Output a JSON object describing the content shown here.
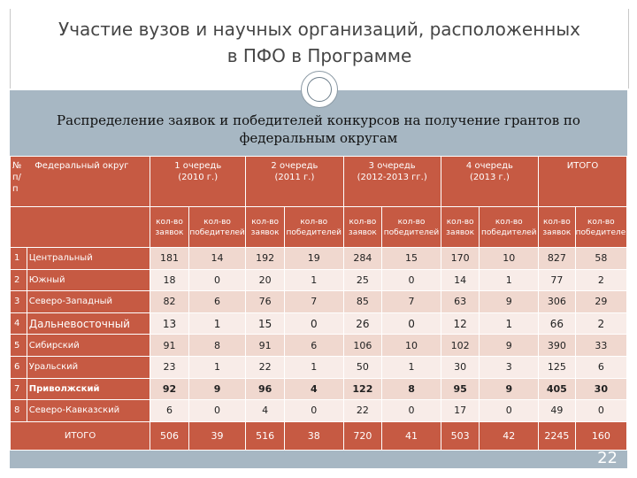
{
  "slide": {
    "title_line1": "Участие вузов и научных организаций, расположенных",
    "title_line2": "в ПФО в Программе",
    "subtitle_line1": "Распределение заявок и победителей конкурсов на получение грантов по",
    "subtitle_line2": "федеральным округам",
    "number": "22"
  },
  "table": {
    "header": {
      "no": "№ п/п",
      "district": "Федеральный округ",
      "rounds": [
        {
          "line1": "1 очередь",
          "line2": "(2010 г.)"
        },
        {
          "line1": "2 очередь",
          "line2": "(2011 г.)"
        },
        {
          "line1": "3 очередь",
          "line2": "(2012-2013 гг.)"
        },
        {
          "line1": "4 очередь",
          "line2": "(2013 г.)"
        },
        {
          "line1": "ИТОГО",
          "line2": ""
        }
      ],
      "sub_applications": "кол-во заявок",
      "sub_winners": "кол-во победителей"
    },
    "rows": [
      {
        "n": "1",
        "name": "Центральный",
        "values": [
          "181",
          "14",
          "192",
          "19",
          "284",
          "15",
          "170",
          "10",
          "827",
          "58"
        ]
      },
      {
        "n": "2",
        "name": "Южный",
        "values": [
          "18",
          "0",
          "20",
          "1",
          "25",
          "0",
          "14",
          "1",
          "77",
          "2"
        ]
      },
      {
        "n": "3",
        "name": "Северо-Западный",
        "values": [
          "82",
          "6",
          "76",
          "7",
          "85",
          "7",
          "63",
          "9",
          "306",
          "29"
        ]
      },
      {
        "n": "4",
        "name": "Дальневосточный",
        "values": [
          "13",
          "1",
          "15",
          "0",
          "26",
          "0",
          "12",
          "1",
          "66",
          "2"
        ]
      },
      {
        "n": "5",
        "name": "Сибирский",
        "values": [
          "91",
          "8",
          "91",
          "6",
          "106",
          "10",
          "102",
          "9",
          "390",
          "33"
        ]
      },
      {
        "n": "6",
        "name": "Уральский",
        "values": [
          "23",
          "1",
          "22",
          "1",
          "50",
          "1",
          "30",
          "3",
          "125",
          "6"
        ]
      },
      {
        "n": "7",
        "name": "Приволжский",
        "values": [
          "92",
          "9",
          "96",
          "4",
          "122",
          "8",
          "95",
          "9",
          "405",
          "30"
        ]
      },
      {
        "n": "8",
        "name": "Северо-Кавказский",
        "values": [
          "6",
          "0",
          "4",
          "0",
          "22",
          "0",
          "17",
          "0",
          "49",
          "0"
        ]
      }
    ],
    "total": {
      "label": "ИТОГО",
      "values": [
        "506",
        "39",
        "516",
        "38",
        "720",
        "41",
        "503",
        "42",
        "2245",
        "160"
      ]
    }
  },
  "colors": {
    "header_bg": "#c65a43",
    "band_bg": "#a7b7c3",
    "row_dark": "#f0d8cf",
    "row_light": "#f8ece8"
  }
}
